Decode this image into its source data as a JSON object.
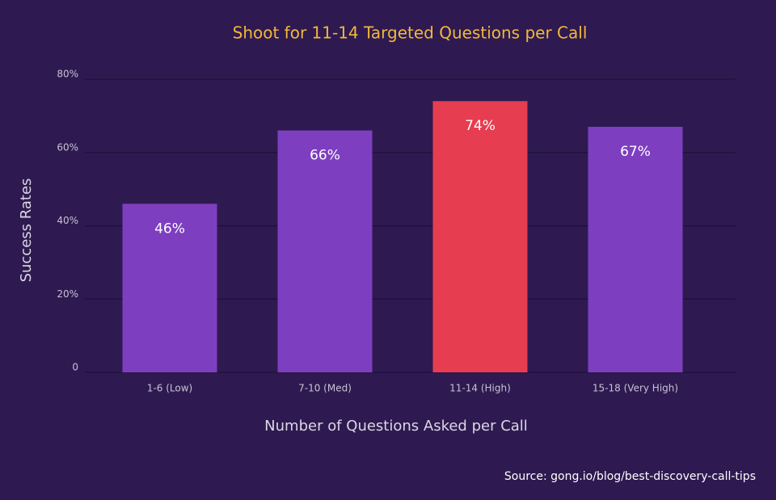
{
  "chart_data": {
    "type": "bar",
    "title": "Shoot for 11-14 Targeted Questions per Call",
    "x_label": "Number of Questions Asked per Call",
    "y_label": "Success Rates",
    "source": "Source: gong.io/blog/best-discovery-call-tips",
    "categories": [
      "1-6 (Low)",
      "7-10 (Med)",
      "11-14 (High)",
      "15-18 (Very High)"
    ],
    "values": [
      46,
      66,
      74,
      67
    ],
    "value_labels": [
      "46%",
      "66%",
      "74%",
      "67%"
    ],
    "colors": [
      "#7d3fc0",
      "#7d3fc0",
      "#e63d50",
      "#7d3fc0"
    ],
    "ylim": [
      0,
      80
    ],
    "yticks": [
      0,
      {
        "value": 20,
        "label": "20%"
      },
      {
        "value": 40,
        "label": "40%"
      },
      {
        "value": 60,
        "label": "60%"
      },
      {
        "value": 80,
        "label": "80%"
      }
    ],
    "grid": true
  }
}
